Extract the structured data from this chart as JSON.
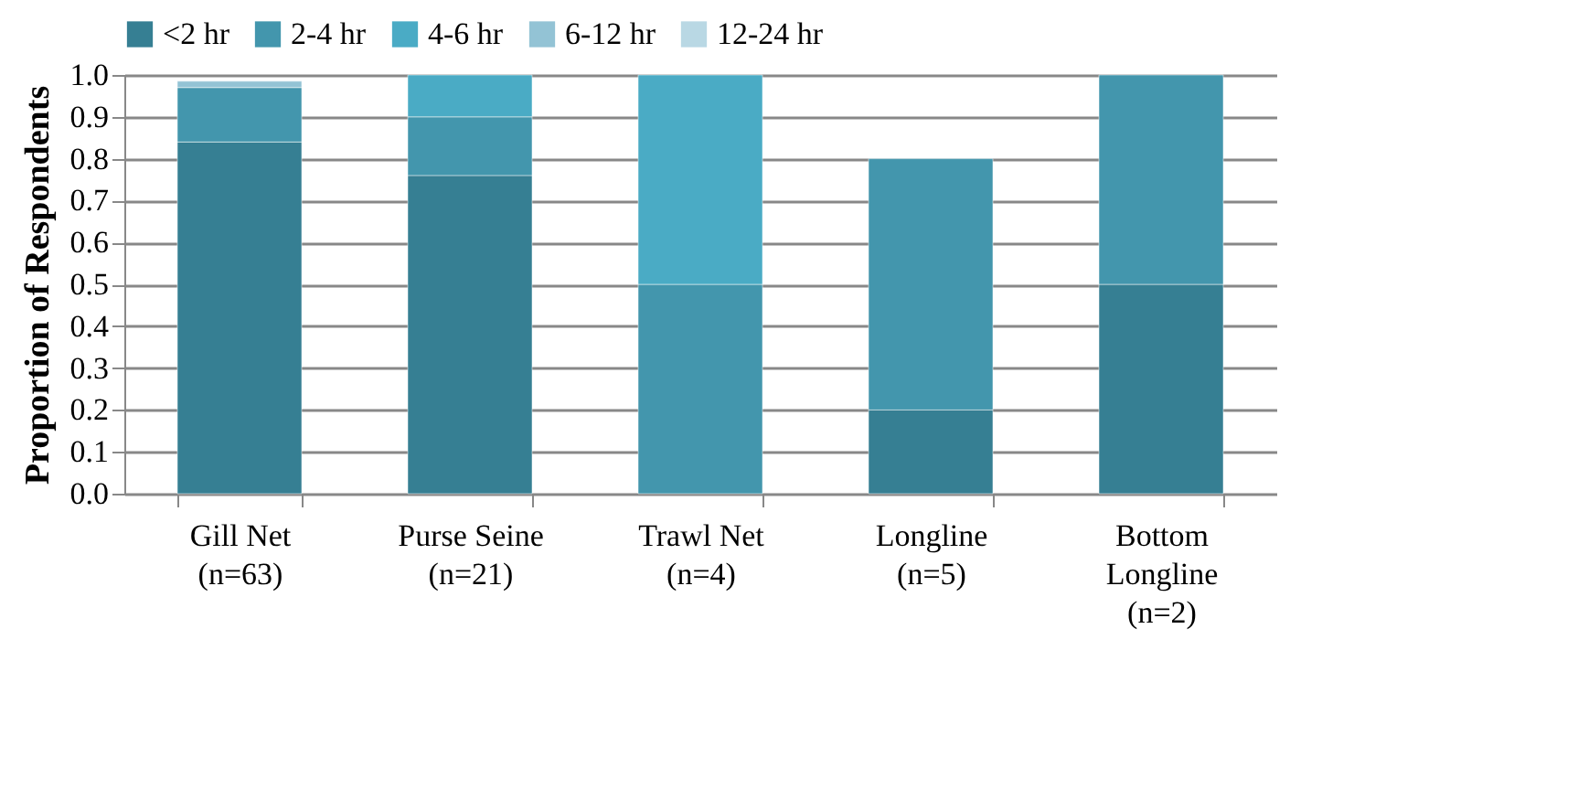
{
  "chart_data": {
    "type": "bar",
    "stacked": true,
    "ylabel": "Proportion of Respondents",
    "categories": [
      "Gill Net\n(n=63)",
      "Purse Seine\n(n=21)",
      "Trawl Net\n(n=4)",
      "Longline\n(n=5)",
      "Bottom\nLongline\n(n=2)"
    ],
    "series": [
      {
        "name": "<2 hr",
        "color": "#367f93",
        "values": [
          0.84,
          0.76,
          null,
          0.2,
          0.5
        ]
      },
      {
        "name": "2-4 hr",
        "color": "#4396ad",
        "values": [
          0.13,
          0.14,
          0.5,
          0.6,
          0.5
        ]
      },
      {
        "name": "4-6 hr",
        "color": "#4aabc5",
        "values": [
          null,
          0.1,
          0.5,
          null,
          null
        ]
      },
      {
        "name": "6-12 hr",
        "color": "#93c3d5",
        "values": [
          0.015,
          null,
          null,
          null,
          null
        ]
      },
      {
        "name": "12-24 hr",
        "color": "#b9d8e4",
        "values": [
          null,
          null,
          null,
          null,
          null
        ]
      }
    ],
    "ylim": [
      0,
      1
    ],
    "yticks": [
      {
        "value": 0,
        "label": "0.0"
      },
      0.1,
      0.2,
      0.3,
      0.4,
      0.5,
      0.6,
      0.7,
      0.8,
      0.9,
      {
        "value": 1,
        "label": "1.0"
      }
    ],
    "grid": "y",
    "legend": "top"
  }
}
